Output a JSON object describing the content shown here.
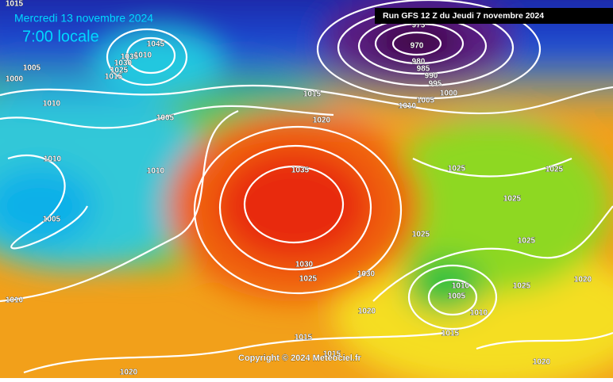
{
  "header": {
    "date": "Mercredi 13 novembre 2024",
    "time": "7:00 locale",
    "run": "Run GFS 12 Z du Jeudi 7 novembre 2024"
  },
  "footer": {
    "copyright": "Copyright © 2024 Meteociel.fr"
  },
  "isobar_labels": [
    "1015",
    "1005",
    "1000",
    "1010",
    "1045",
    "1010",
    "1035",
    "1030",
    "1025",
    "1015",
    "1005",
    "1010",
    "1010",
    "1005",
    "1010",
    "975",
    "970",
    "980",
    "985",
    "990",
    "995",
    "1000",
    "1005",
    "1010",
    "1015",
    "1020",
    "1035",
    "1025",
    "1025",
    "1025",
    "1025",
    "1025",
    "1030",
    "1025",
    "1030",
    "1020",
    "1010",
    "1005",
    "1010",
    "1025",
    "1020",
    "1015",
    "1015",
    "1015",
    "1020",
    "1020"
  ]
}
